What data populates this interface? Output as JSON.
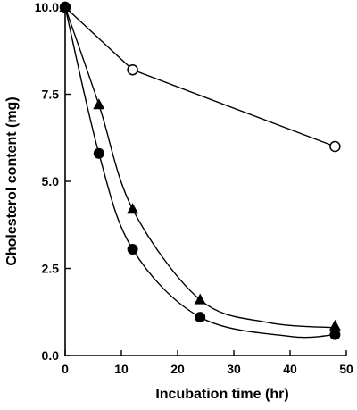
{
  "chart_data": {
    "type": "scatter",
    "title": "",
    "xlabel": "Incubation time (hr)",
    "ylabel": "Cholesterol content (mg)",
    "xlim": [
      0,
      50
    ],
    "ylim": [
      0,
      10
    ],
    "x_ticks": [
      "0",
      "10",
      "20",
      "30",
      "40",
      "50"
    ],
    "y_ticks": [
      "0.0",
      "2.5",
      "5.0",
      "7.5",
      "10.0"
    ],
    "grid": false,
    "legend": "none",
    "series": [
      {
        "marker": "open-circle",
        "points": [
          [
            0,
            10.0
          ],
          [
            12,
            8.2
          ],
          [
            48,
            6.0
          ]
        ],
        "curve": [
          [
            0,
            10.0
          ],
          [
            12,
            8.2
          ],
          [
            48,
            6.0
          ]
        ]
      },
      {
        "marker": "filled-triangle",
        "points": [
          [
            0,
            10.0
          ],
          [
            6,
            7.2
          ],
          [
            12,
            4.2
          ],
          [
            24,
            1.6
          ],
          [
            48,
            0.85
          ]
        ],
        "curve": [
          [
            0,
            10.0
          ],
          [
            6,
            7.2
          ],
          [
            12,
            4.2
          ],
          [
            24,
            1.6
          ],
          [
            36,
            0.95
          ],
          [
            48,
            0.8
          ]
        ]
      },
      {
        "marker": "filled-circle",
        "points": [
          [
            0,
            10.0
          ],
          [
            6,
            5.8
          ],
          [
            12,
            3.05
          ],
          [
            24,
            1.1
          ],
          [
            48,
            0.6
          ]
        ],
        "curve": [
          [
            0,
            10.0
          ],
          [
            6,
            5.8
          ],
          [
            12,
            3.05
          ],
          [
            24,
            1.1
          ],
          [
            40,
            0.55
          ],
          [
            48,
            0.6
          ]
        ]
      }
    ]
  }
}
